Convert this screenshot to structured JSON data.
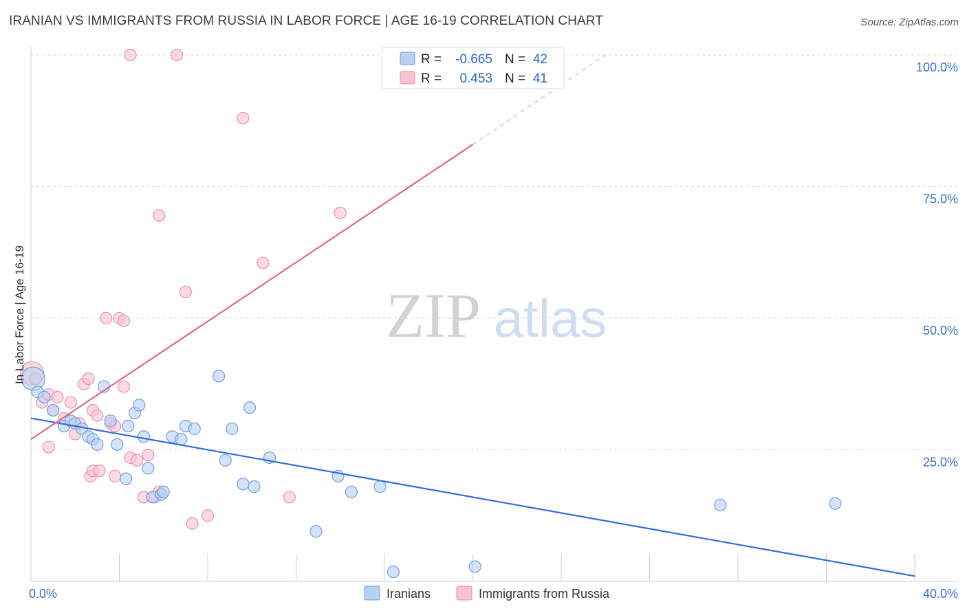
{
  "title": "IRANIAN VS IMMIGRANTS FROM RUSSIA IN LABOR FORCE | AGE 16-19 CORRELATION CHART",
  "source": "Source: ZipAtlas.com",
  "watermark": {
    "zip": "ZIP",
    "atlas": "atlas"
  },
  "colors": {
    "blue_fill": "#b8d0f2",
    "blue_stroke": "#6f9fe0",
    "blue_line": "#2f6fd6",
    "pink_fill": "#f7c3d3",
    "pink_stroke": "#ec8fae",
    "pink_line": "#e0668f",
    "grid": "#d8d8d8",
    "tick_label": "#3a6fc4"
  },
  "legend_box": {
    "rows": [
      {
        "series": "Iranians",
        "r_label": "R =",
        "r_value": "-0.665",
        "n_label": "N =",
        "n_value": "42"
      },
      {
        "series": "Immigrants from Russia",
        "r_label": "R =",
        "r_value": "0.453",
        "n_label": "N =",
        "n_value": "41"
      }
    ]
  },
  "chart_data": {
    "type": "scatter",
    "title": "IRANIAN VS IMMIGRANTS FROM RUSSIA IN LABOR FORCE | AGE 16-19 CORRELATION CHART",
    "xlabel": "",
    "ylabel": "In Labor Force | Age 16-19",
    "xlim": [
      0,
      40
    ],
    "ylim": [
      0,
      100
    ],
    "x_tick_labels": [
      "0.0%",
      "40.0%"
    ],
    "y_ticks": [
      25,
      50,
      75,
      100
    ],
    "y_tick_labels": [
      "25.0%",
      "50.0%",
      "75.0%",
      "100.0%"
    ],
    "grid": true,
    "legend_placement": "top-center",
    "series": [
      {
        "name": "Iranians",
        "color": "#6f9fe0",
        "points": [
          [
            0.1,
            38.5
          ],
          [
            0.3,
            36
          ],
          [
            0.6,
            35
          ],
          [
            1.0,
            32.5
          ],
          [
            1.5,
            29.5
          ],
          [
            1.8,
            30.5
          ],
          [
            2.0,
            30
          ],
          [
            2.3,
            29
          ],
          [
            2.6,
            27.5
          ],
          [
            2.8,
            27
          ],
          [
            3.0,
            26
          ],
          [
            3.3,
            37
          ],
          [
            3.6,
            30.5
          ],
          [
            3.9,
            26
          ],
          [
            4.3,
            19.5
          ],
          [
            4.4,
            29.5
          ],
          [
            4.7,
            32
          ],
          [
            4.9,
            33.5
          ],
          [
            5.1,
            27.5
          ],
          [
            5.3,
            21.5
          ],
          [
            5.5,
            16
          ],
          [
            5.9,
            16.5
          ],
          [
            6.0,
            17
          ],
          [
            6.4,
            27.5
          ],
          [
            6.8,
            27
          ],
          [
            7.0,
            29.5
          ],
          [
            7.4,
            29
          ],
          [
            8.5,
            39
          ],
          [
            8.8,
            23
          ],
          [
            9.1,
            29
          ],
          [
            9.6,
            18.5
          ],
          [
            9.9,
            33
          ],
          [
            10.1,
            18
          ],
          [
            10.8,
            23.5
          ],
          [
            12.9,
            9.5
          ],
          [
            13.9,
            20
          ],
          [
            14.5,
            17
          ],
          [
            15.8,
            18
          ],
          [
            16.4,
            1.8
          ],
          [
            20.1,
            2.8
          ],
          [
            31.2,
            14.5
          ],
          [
            36.4,
            14.8
          ]
        ],
        "trend": {
          "x": [
            0,
            40
          ],
          "y": [
            31,
            1
          ]
        }
      },
      {
        "name": "Immigrants from Russia",
        "color": "#ec8fae",
        "points": [
          [
            0.05,
            39.5
          ],
          [
            0.2,
            38.5
          ],
          [
            0.5,
            34
          ],
          [
            0.8,
            35.5
          ],
          [
            1.0,
            32.5
          ],
          [
            1.2,
            35
          ],
          [
            1.5,
            31
          ],
          [
            1.8,
            34
          ],
          [
            2.0,
            28
          ],
          [
            2.2,
            30
          ],
          [
            2.4,
            37.5
          ],
          [
            2.6,
            38.5
          ],
          [
            2.8,
            32.5
          ],
          [
            3.0,
            31.5
          ],
          [
            0.8,
            25.5
          ],
          [
            3.6,
            30
          ],
          [
            3.8,
            29.5
          ],
          [
            2.7,
            20
          ],
          [
            2.8,
            21
          ],
          [
            3.1,
            21
          ],
          [
            3.8,
            20
          ],
          [
            4.2,
            37
          ],
          [
            3.4,
            50
          ],
          [
            4.0,
            50
          ],
          [
            4.2,
            49.5
          ],
          [
            4.5,
            23.5
          ],
          [
            4.8,
            23
          ],
          [
            5.1,
            16
          ],
          [
            5.3,
            24
          ],
          [
            5.6,
            16
          ],
          [
            5.8,
            17
          ],
          [
            4.5,
            100
          ],
          [
            6.6,
            100
          ],
          [
            7.0,
            55
          ],
          [
            7.3,
            11
          ],
          [
            8.0,
            12.5
          ],
          [
            9.6,
            88
          ],
          [
            10.5,
            60.5
          ],
          [
            11.7,
            16
          ],
          [
            14.0,
            70
          ],
          [
            5.8,
            69.5
          ]
        ],
        "trend": {
          "x": [
            0,
            20
          ],
          "y": [
            27,
            83
          ]
        },
        "trend_extension": {
          "x": [
            20,
            26
          ],
          "y": [
            83,
            100
          ]
        }
      }
    ]
  },
  "bottom_legend": [
    {
      "label": "Iranians"
    },
    {
      "label": "Immigrants from Russia"
    }
  ]
}
